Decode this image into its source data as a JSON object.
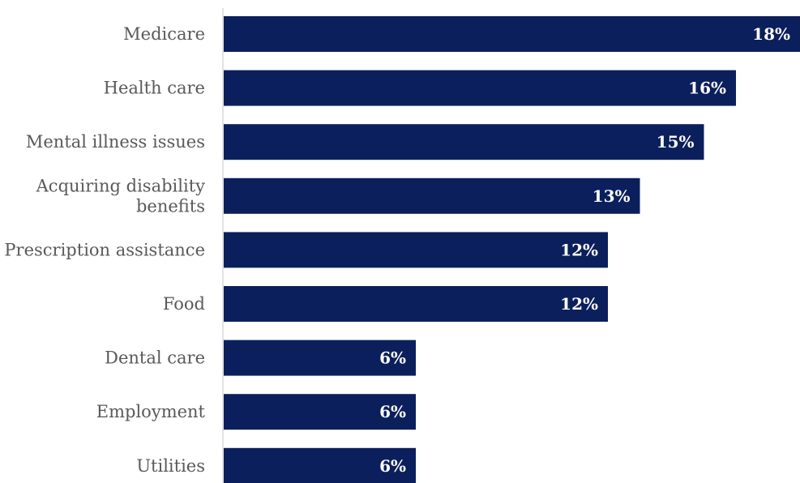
{
  "chart_data": {
    "type": "bar",
    "orientation": "horizontal",
    "categories": [
      [
        "Medicare"
      ],
      [
        "Health care"
      ],
      [
        "Mental illness issues"
      ],
      [
        "Acquiring disability",
        "benefits"
      ],
      [
        "Prescription assistance"
      ],
      [
        "Food"
      ],
      [
        "Dental care"
      ],
      [
        "Employment"
      ],
      [
        "Utilities"
      ]
    ],
    "values": [
      18,
      16,
      15,
      13,
      12,
      12,
      6,
      6,
      6
    ],
    "value_labels": [
      "18%",
      "16%",
      "15%",
      "13%",
      "12%",
      "12%",
      "6%",
      "6%",
      "6%"
    ],
    "unit": "%",
    "xlim": [
      0,
      18
    ],
    "grid": false,
    "legend": "none",
    "bar_color": "#0b1f5c",
    "axis_color": "#d9d9d9",
    "label_color": "#595959",
    "value_label_color": "#ffffff"
  }
}
